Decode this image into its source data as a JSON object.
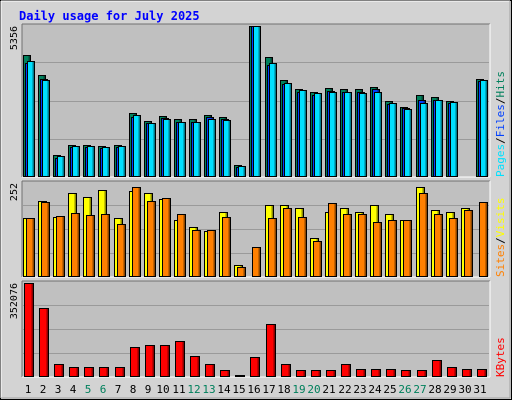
{
  "chart_data": {
    "type": "bar",
    "title": "Daily usage for July 2025",
    "days": [
      "1",
      "2",
      "3",
      "4",
      "5",
      "6",
      "7",
      "8",
      "9",
      "10",
      "11",
      "12",
      "13",
      "14",
      "15",
      "16",
      "17",
      "18",
      "19",
      "20",
      "21",
      "22",
      "23",
      "24",
      "25",
      "26",
      "27",
      "28",
      "29",
      "30",
      "31"
    ],
    "weekend_days": [
      "5",
      "6",
      "12",
      "13",
      "19",
      "20",
      "26",
      "27"
    ],
    "colors": {
      "hits": "#00805c",
      "files": "#0040ff",
      "pages": "#00e0ff",
      "visits": "#ffff00",
      "sites": "#ff8000",
      "kbytes": "#ff0000",
      "title": "#0000ff",
      "weekend": "#00805c",
      "plot_bg": "#c0c0c0",
      "frame_bg": "#d3d3d3"
    },
    "panels": [
      {
        "id": "top",
        "max_label": "5356",
        "ylim": [
          0,
          5356
        ],
        "legend": [
          "Pages",
          "Files",
          "Hits"
        ],
        "series": [
          {
            "name": "Hits",
            "color": "#00805c",
            "values": [
              4330,
              3620,
              770,
              1130,
              1130,
              1090,
              1130,
              2260,
              2000,
              2150,
              2050,
              2040,
              2200,
              2130,
              430,
              5356,
              4240,
              3440,
              3120,
              3020,
              3140,
              3110,
              3120,
              3210,
              2690,
              2490,
              2910,
              2840,
              2700,
              0,
              3490
            ]
          },
          {
            "name": "Files",
            "color": "#0040ff",
            "values": [
              4060,
              3490,
              690,
              1060,
              1070,
              1020,
              1070,
              2140,
              1900,
              2080,
              1960,
              1960,
              2130,
              2050,
              370,
              5356,
              3980,
              3310,
              3010,
              2920,
              3050,
              3000,
              3010,
              3110,
              2600,
              2430,
              2730,
              2720,
              2620,
              0,
              3410
            ]
          },
          {
            "name": "Pages",
            "color": "#00e0ff",
            "values": [
              4120,
              3440,
              740,
              1100,
              1100,
              1050,
              1090,
              2190,
              1900,
              2040,
              1950,
              1950,
              2040,
              2030,
              380,
              5356,
              4050,
              3320,
              3080,
              2970,
              3020,
              3020,
              2980,
              3020,
              2630,
              2410,
              2620,
              2730,
              2670,
              0,
              3450
            ]
          }
        ]
      },
      {
        "id": "middle",
        "max_label": "252",
        "ylim": [
          0,
          252
        ],
        "legend": [
          "Sites",
          "Visits"
        ],
        "series": [
          {
            "name": "Visits",
            "color": "#ffff00",
            "values": [
              158,
              205,
              162,
              225,
              215,
              232,
              158,
              230,
              225,
              208,
              152,
              135,
              122,
              174,
              33,
              0,
              194,
              194,
              184,
              105,
              174,
              184,
              174,
              194,
              168,
              153,
              242,
              180,
              174,
              184,
              0
            ]
          },
          {
            "name": "Sites",
            "color": "#ff8000",
            "values": [
              158,
              200,
              163,
              172,
              165,
              168,
              142,
              242,
              205,
              212,
              170,
              127,
              127,
              162,
              28,
              80,
              158,
              184,
              160,
              97,
              198,
              168,
              168,
              147,
              154,
              153,
              225,
              170,
              158,
              180,
              200
            ]
          }
        ]
      },
      {
        "id": "bottom",
        "max_label": "352076",
        "ylim": [
          0,
          352076
        ],
        "legend": [
          "KBytes"
        ],
        "series": [
          {
            "name": "KBytes",
            "color": "#ff0000",
            "values": [
              352076,
              257600,
              49800,
              37100,
              37100,
              37100,
              37100,
              113700,
              118400,
              118400,
              133100,
              77700,
              48500,
              26500,
              7500,
              75000,
              199500,
              49800,
              26500,
              26500,
              26500,
              49800,
              30000,
              30000,
              30000,
              26500,
              26500,
              62100,
              36000,
              30000,
              30000
            ]
          }
        ]
      }
    ]
  }
}
